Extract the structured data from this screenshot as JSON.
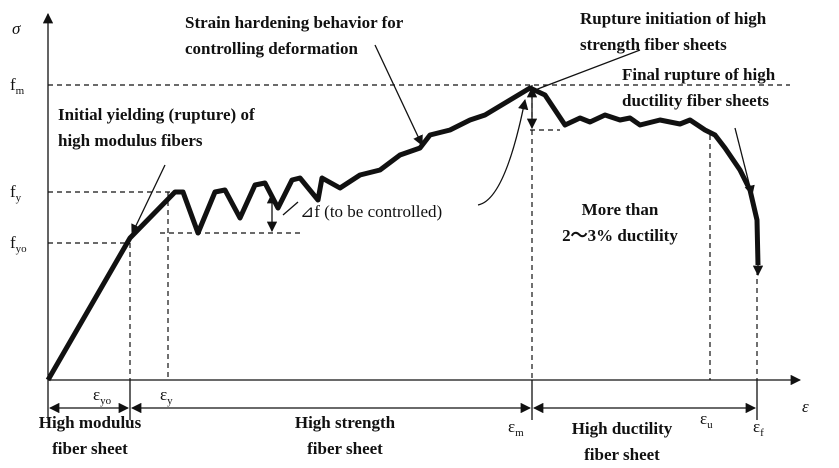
{
  "axes": {
    "y_label": "σ",
    "x_label": "ε"
  },
  "y_markers": [
    {
      "base": "f",
      "sub": "m"
    },
    {
      "base": "f",
      "sub": "y"
    },
    {
      "base": "f",
      "sub": "yo"
    }
  ],
  "x_markers": [
    {
      "base": "ε",
      "sub": "yo"
    },
    {
      "base": "ε",
      "sub": "y"
    },
    {
      "base": "ε",
      "sub": "m"
    },
    {
      "base": "ε",
      "sub": "u"
    },
    {
      "base": "ε",
      "sub": "f"
    }
  ],
  "annotations": {
    "strain_hardening": [
      "Strain hardening behavior for",
      "controlling deformation"
    ],
    "rupture_initiation": [
      "Rupture initiation of high",
      "strength fiber sheets"
    ],
    "final_rupture": [
      "Final rupture of high",
      "ductility fiber sheets"
    ],
    "initial_yielding": [
      "Initial yielding (rupture) of",
      "high modulus fibers"
    ],
    "delta_f": "⊿f (to be controlled)",
    "ductility": [
      "More than",
      "2～3% ductility"
    ]
  },
  "regions": [
    [
      "High modulus",
      "fiber sheet"
    ],
    [
      "High strength",
      "fiber sheet"
    ],
    [
      "High ductility",
      "fiber sheet"
    ]
  ]
}
